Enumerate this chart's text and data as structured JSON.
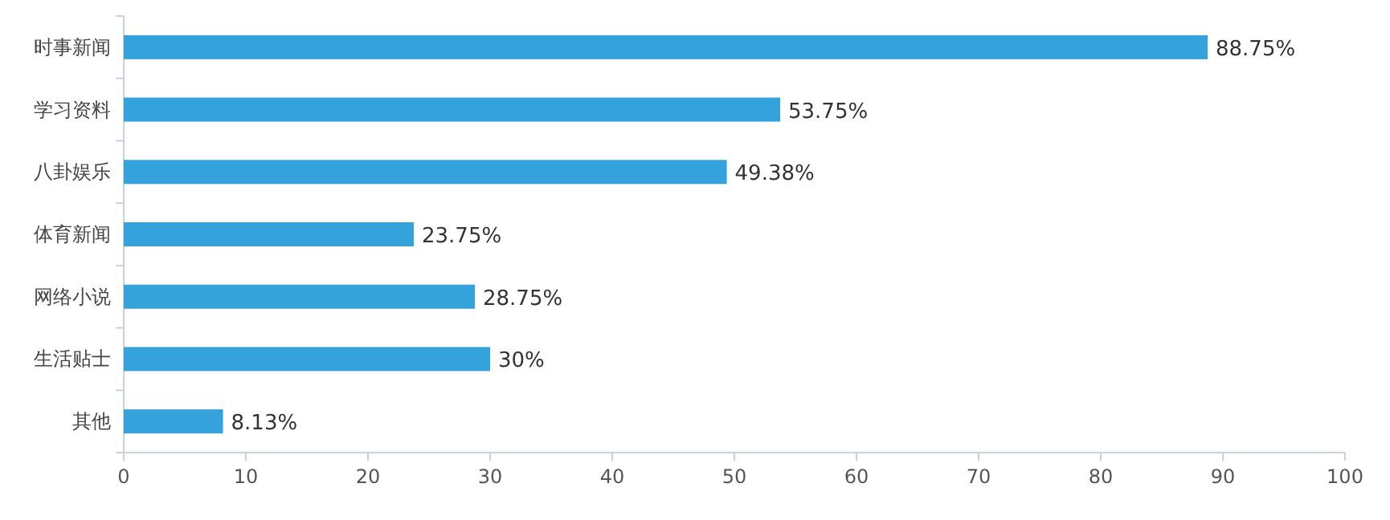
{
  "chart_data": {
    "type": "bar",
    "orientation": "horizontal",
    "categories": [
      "时事新闻",
      "学习资料",
      "八卦娱乐",
      "体育新闻",
      "网络小说",
      "生活贴士",
      "其他"
    ],
    "values": [
      88.75,
      53.75,
      49.38,
      23.75,
      28.75,
      30,
      8.13
    ],
    "value_labels": [
      "88.75%",
      "53.75%",
      "49.38%",
      "23.75%",
      "28.75%",
      "30%",
      "8.13%"
    ],
    "color": "#34a3dc",
    "xlim": [
      0,
      100
    ],
    "xticks": [
      0,
      10,
      20,
      30,
      40,
      50,
      60,
      70,
      80,
      90,
      100
    ],
    "grid": false
  }
}
